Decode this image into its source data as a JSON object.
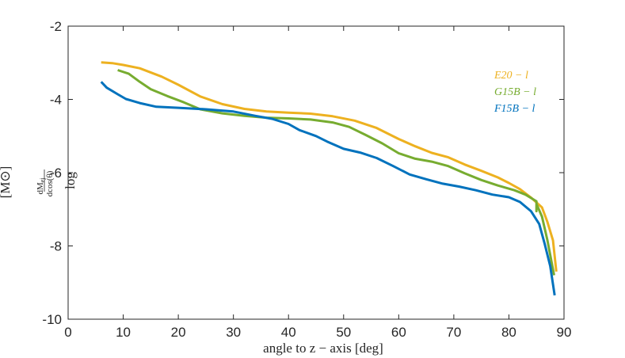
{
  "chart_data": {
    "type": "line",
    "title": "",
    "xlabel": "angle to z − axis [deg]",
    "ylabel": {
      "prefix": "log",
      "frac_num": "dM",
      "frac_num_sub": "ej",
      "frac_den": "dcos(θ)",
      "unit": "[M⊙]"
    },
    "xlim": [
      0,
      90
    ],
    "ylim": [
      -10,
      -2
    ],
    "xticks": [
      0,
      10,
      20,
      30,
      40,
      50,
      60,
      70,
      80,
      90
    ],
    "yticks": [
      -2,
      -4,
      -6,
      -8,
      -10
    ],
    "grid": false,
    "legend_position": "top-right",
    "series": [
      {
        "name": "E20 − l",
        "color": "#EDB120",
        "points": [
          [
            6,
            -2.99
          ],
          [
            8,
            -3.01
          ],
          [
            10,
            -3.06
          ],
          [
            13,
            -3.15
          ],
          [
            17,
            -3.38
          ],
          [
            20,
            -3.6
          ],
          [
            24,
            -3.92
          ],
          [
            28,
            -4.13
          ],
          [
            32,
            -4.26
          ],
          [
            36,
            -4.33
          ],
          [
            40,
            -4.36
          ],
          [
            44,
            -4.39
          ],
          [
            48,
            -4.46
          ],
          [
            52,
            -4.58
          ],
          [
            56,
            -4.78
          ],
          [
            60,
            -5.08
          ],
          [
            63,
            -5.28
          ],
          [
            66,
            -5.46
          ],
          [
            69,
            -5.58
          ],
          [
            72,
            -5.78
          ],
          [
            75,
            -5.95
          ],
          [
            78,
            -6.13
          ],
          [
            80,
            -6.28
          ],
          [
            82,
            -6.45
          ],
          [
            84,
            -6.68
          ],
          [
            86,
            -6.95
          ],
          [
            87,
            -7.35
          ],
          [
            88,
            -7.85
          ],
          [
            88.6,
            -8.7
          ]
        ]
      },
      {
        "name": "G15B − l",
        "color": "#77AC30",
        "points": [
          [
            9,
            -3.2
          ],
          [
            11,
            -3.3
          ],
          [
            13,
            -3.52
          ],
          [
            15,
            -3.72
          ],
          [
            18,
            -3.91
          ],
          [
            21,
            -4.08
          ],
          [
            24,
            -4.27
          ],
          [
            28,
            -4.38
          ],
          [
            32,
            -4.45
          ],
          [
            36,
            -4.5
          ],
          [
            40,
            -4.52
          ],
          [
            44,
            -4.55
          ],
          [
            48,
            -4.63
          ],
          [
            51,
            -4.75
          ],
          [
            54,
            -4.97
          ],
          [
            57,
            -5.2
          ],
          [
            60,
            -5.47
          ],
          [
            63,
            -5.62
          ],
          [
            66,
            -5.7
          ],
          [
            69,
            -5.82
          ],
          [
            72,
            -6.02
          ],
          [
            75,
            -6.2
          ],
          [
            78,
            -6.35
          ],
          [
            81,
            -6.48
          ],
          [
            83,
            -6.6
          ],
          [
            85,
            -6.78
          ],
          [
            85,
            -7.05
          ],
          [
            85,
            -6.85
          ],
          [
            86,
            -7.2
          ],
          [
            87,
            -7.85
          ],
          [
            88.2,
            -8.8
          ]
        ]
      },
      {
        "name": "F15B − l",
        "color": "#0072BD",
        "points": [
          [
            6,
            -3.52
          ],
          [
            7,
            -3.68
          ],
          [
            9,
            -3.86
          ],
          [
            10.5,
            -3.99
          ],
          [
            13,
            -4.1
          ],
          [
            16,
            -4.2
          ],
          [
            20,
            -4.23
          ],
          [
            25,
            -4.27
          ],
          [
            30,
            -4.33
          ],
          [
            34,
            -4.45
          ],
          [
            37,
            -4.53
          ],
          [
            40,
            -4.67
          ],
          [
            42,
            -4.84
          ],
          [
            45,
            -5.0
          ],
          [
            47,
            -5.15
          ],
          [
            50,
            -5.35
          ],
          [
            53,
            -5.45
          ],
          [
            56,
            -5.6
          ],
          [
            59,
            -5.82
          ],
          [
            62,
            -6.05
          ],
          [
            65,
            -6.18
          ],
          [
            68,
            -6.3
          ],
          [
            71,
            -6.38
          ],
          [
            74,
            -6.48
          ],
          [
            77,
            -6.6
          ],
          [
            80,
            -6.67
          ],
          [
            82,
            -6.8
          ],
          [
            84,
            -7.05
          ],
          [
            85.5,
            -7.4
          ],
          [
            86.5,
            -7.95
          ],
          [
            87.5,
            -8.55
          ],
          [
            88.3,
            -9.35
          ]
        ]
      }
    ]
  }
}
